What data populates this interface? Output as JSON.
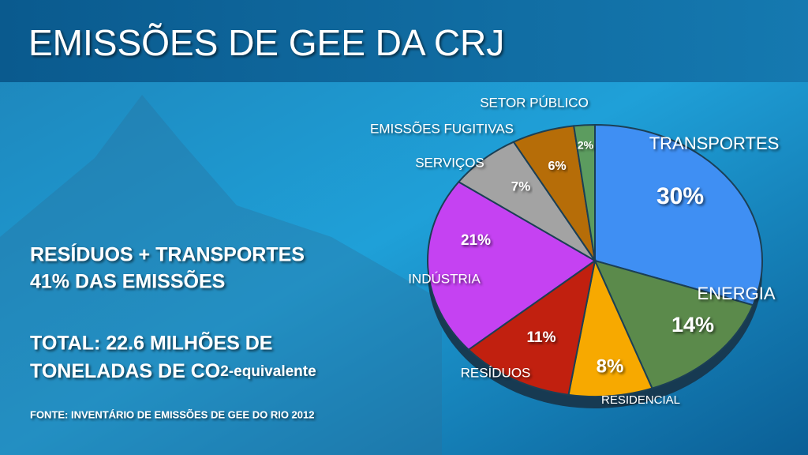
{
  "chart_data": {
    "type": "pie",
    "title": "EMISSÕES DE GEE DA CRJ",
    "categories": [
      "TRANSPORTES",
      "ENERGIA",
      "RESIDENCIAL",
      "RESÍDUOS",
      "INDÚSTRIA",
      "SERVIÇOS",
      "EMISSÕES FUGITIVAS",
      "SETOR PÚBLICO"
    ],
    "values": [
      30,
      14,
      8,
      11,
      21,
      7,
      6,
      2
    ],
    "value_labels": [
      "30%",
      "14%",
      "8%",
      "11%",
      "21%",
      "7%",
      "6%",
      "2%"
    ],
    "colors": [
      "#3f8ff3",
      "#5b8a4b",
      "#f7a900",
      "#c1200f",
      "#c542f2",
      "#a3a3a3",
      "#b66d08",
      "#5c9c5f"
    ]
  },
  "slide": {
    "lines": [
      "RESÍDUOS + TRANSPORTES",
      "41% DAS EMISSÕES",
      "TOTAL: 22.6 MILHÕES DE"
    ],
    "co2_line": {
      "main": "TONELADAS DE CO",
      "sub": "2-equivalente"
    },
    "source": "FONTE: INVENTÁRIO DE EMISSÕES DE GEE DO RIO 2012"
  }
}
